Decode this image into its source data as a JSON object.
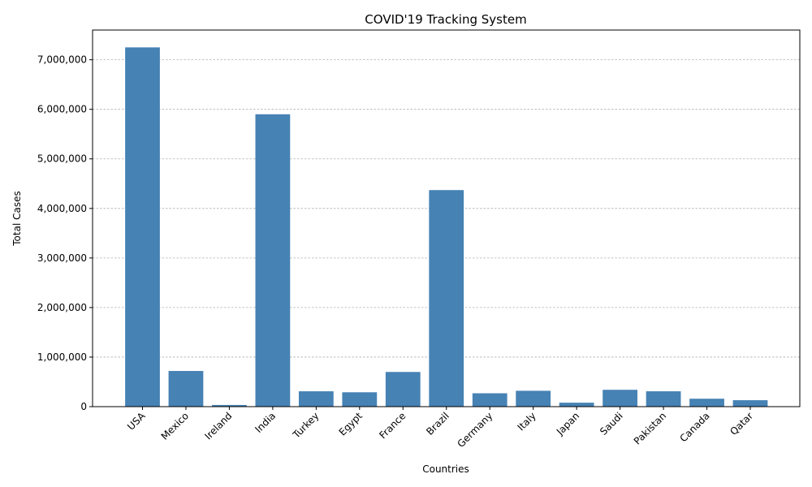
{
  "chart_data": {
    "type": "bar",
    "title": "COVID'19 Tracking System",
    "xlabel": "Countries",
    "ylabel": "Total Cases",
    "categories": [
      "USA",
      "Mexico",
      "Ireland",
      "India",
      "Turkey",
      "Egypt",
      "France",
      "Brazil",
      "Germany",
      "Italy",
      "Japan",
      "Saudi",
      "Pakistan",
      "Canada",
      "Qatar"
    ],
    "values": [
      7250000,
      720000,
      34000,
      5900000,
      310000,
      290000,
      700000,
      4370000,
      270000,
      320000,
      80000,
      340000,
      310000,
      160000,
      130000
    ],
    "ylim": [
      0,
      7600000
    ],
    "yticks": [
      0,
      1000000,
      2000000,
      3000000,
      4000000,
      5000000,
      6000000,
      7000000
    ],
    "ytick_labels": [
      "0",
      "1,000,000",
      "2,000,000",
      "3,000,000",
      "4,000,000",
      "5,000,000",
      "6,000,000",
      "7,000,000"
    ],
    "grid": "y-dashed",
    "legend": "none",
    "bar_color": "#4682b4",
    "xtick_rotation_deg": 45
  }
}
